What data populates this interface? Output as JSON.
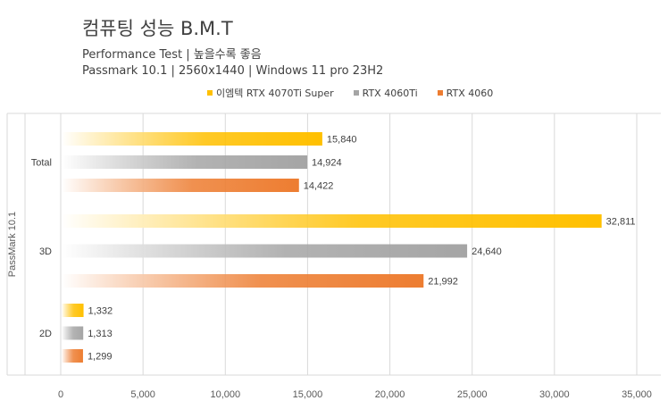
{
  "chart_data": {
    "type": "bar",
    "orientation": "horizontal",
    "title": "컴퓨팅 성능 B.M.T",
    "subtitle_lines": [
      "Performance Test | 높을수록 좋음",
      "Passmark 10.1 | 2560x1440 | Windows 11 pro 23H2"
    ],
    "ylabel": "PassMark 10.1",
    "categories": [
      "Total",
      "3D",
      "2D"
    ],
    "series": [
      {
        "name": "이엠텍 RTX 4070Ti Super",
        "values": [
          15840,
          32811,
          1332
        ],
        "labels": [
          "15,840",
          "32,811",
          "1,332"
        ],
        "color": "#ffc000"
      },
      {
        "name": "RTX 4060Ti",
        "values": [
          14924,
          24640,
          1313
        ],
        "labels": [
          "14,924",
          "24,640",
          "1,313"
        ],
        "color": "#a5a5a5"
      },
      {
        "name": "RTX 4060",
        "values": [
          14422,
          21992,
          1299
        ],
        "labels": [
          "14,422",
          "21,992",
          "1,299"
        ],
        "color": "#ed7d31"
      }
    ],
    "xlim": [
      0,
      35000
    ],
    "xticks": [
      0,
      5000,
      10000,
      15000,
      20000,
      25000,
      30000,
      35000
    ],
    "xtick_labels": [
      "0",
      "5,000",
      "10,000",
      "15,000",
      "20,000",
      "25,000",
      "30,000",
      "35,000"
    ],
    "grid": true,
    "legend_position": "top"
  }
}
